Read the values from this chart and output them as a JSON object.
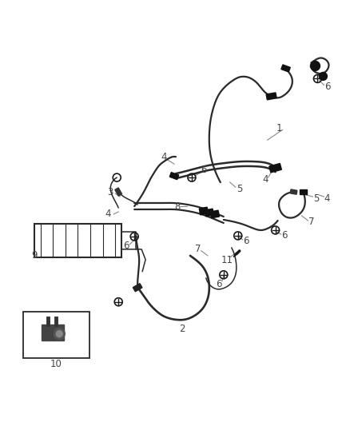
{
  "background_color": "#ffffff",
  "line_color": "#2a2a2a",
  "label_color": "#444444",
  "figsize": [
    4.38,
    5.33
  ],
  "dpi": 100,
  "lw_thick": 2.2,
  "lw_mid": 1.6,
  "lw_thin": 1.1,
  "label_fs": 8.5,
  "leader_color": "#888888"
}
